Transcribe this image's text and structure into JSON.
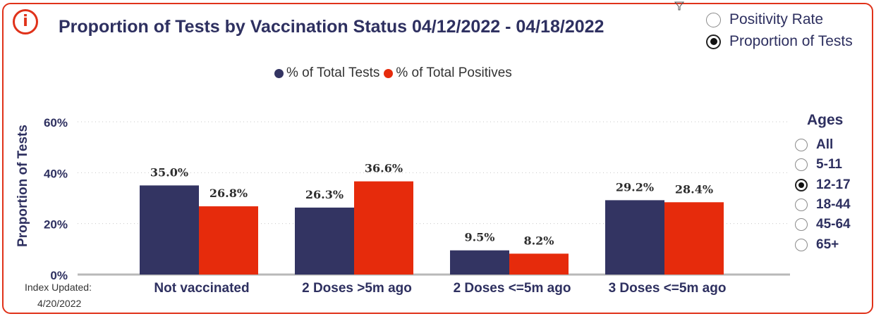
{
  "header": {
    "title": "Proportion of Tests by Vaccination Status 04/12/2022 - 04/18/2022",
    "info_icon": "info-icon",
    "filter_icon": "filter-icon"
  },
  "metric_toggle": {
    "options": [
      {
        "label": "Positivity Rate",
        "selected": false
      },
      {
        "label": "Proportion of Tests",
        "selected": true
      }
    ]
  },
  "ages": {
    "title": "Ages",
    "options": [
      {
        "label": "All",
        "selected": false
      },
      {
        "label": "5-11",
        "selected": false
      },
      {
        "label": "12-17",
        "selected": true
      },
      {
        "label": "18-44",
        "selected": false
      },
      {
        "label": "45-64",
        "selected": false
      },
      {
        "label": "65+",
        "selected": false
      }
    ]
  },
  "footer": {
    "index_updated_label": "Index Updated:",
    "index_updated_date": "4/20/2022"
  },
  "colors": {
    "accent": "#e0321a",
    "tests": "#333462",
    "positives": "#e62b0c"
  },
  "chart_data": {
    "type": "bar",
    "title": "Proportion of Tests by Vaccination Status 04/12/2022 - 04/18/2022",
    "xlabel": "",
    "ylabel": "Proportion of Tests",
    "categories": [
      "Not vaccinated",
      "2 Doses >5m ago",
      "2 Doses <=5m ago",
      "3 Doses <=5m ago"
    ],
    "series": [
      {
        "name": "% of Total Tests",
        "color": "#333462",
        "values": [
          35.0,
          26.3,
          9.5,
          29.2
        ],
        "labels": [
          "35.0%",
          "26.3%",
          "9.5%",
          "29.2%"
        ]
      },
      {
        "name": "% of Total Positives",
        "color": "#e62b0c",
        "values": [
          26.8,
          36.6,
          8.2,
          28.4
        ],
        "labels": [
          "26.8%",
          "36.6%",
          "8.2%",
          "28.4%"
        ]
      }
    ],
    "ylim": [
      0,
      60
    ],
    "yticks": [
      0,
      20,
      40,
      60
    ],
    "ytick_labels": [
      "0%",
      "20%",
      "40%",
      "60%"
    ],
    "grid": true,
    "legend_position": "top-center"
  }
}
